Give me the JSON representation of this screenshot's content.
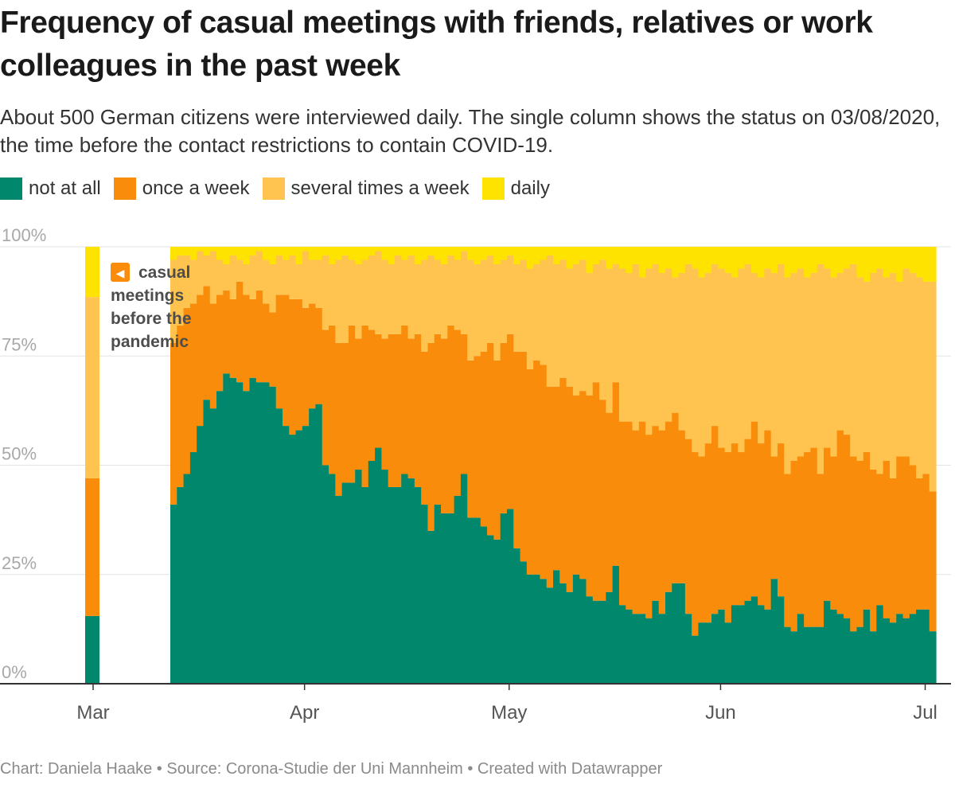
{
  "title": "Frequency of casual meetings with friends, relatives or work colleagues in the past week",
  "subtitle": "About 500 German citizens were interviewed daily. The single column shows the status on 03/08/2020, the time before the contact restrictions to contain COVID-19.",
  "footer": {
    "credit": "Chart: Daniela Haake",
    "source": "Source: Corona-Studie der Uni Mannheim",
    "tool": "Created with Datawrapper",
    "separator": "•"
  },
  "colors": {
    "not_at_all": "#00876c",
    "once_a_week": "#f98c0a",
    "several_times": "#fec44f",
    "daily": "#ffe300",
    "grid": "#e3e3e3",
    "axis": "#333333"
  },
  "legend": [
    {
      "key": "not_at_all",
      "label": "not at all"
    },
    {
      "key": "once_a_week",
      "label": "once a week"
    },
    {
      "key": "several_times",
      "label": "several times a week"
    },
    {
      "key": "daily",
      "label": "daily"
    }
  ],
  "chart_data": {
    "type": "area",
    "stacked": true,
    "normalized": true,
    "title": "Frequency of casual meetings with friends, relatives or work colleagues in the past week",
    "xlabel": "",
    "ylabel": "",
    "ylim": [
      0,
      100
    ],
    "y_ticks": [
      "0%",
      "25%",
      "50%",
      "75%",
      "100%"
    ],
    "x_ticks": [
      {
        "date": "2020-03-01",
        "label": "Mar"
      },
      {
        "date": "2020-04-01",
        "label": "Apr"
      },
      {
        "date": "2020-05-01",
        "label": "May"
      },
      {
        "date": "2020-06-01",
        "label": "Jun"
      },
      {
        "date": "2020-07-01",
        "label": "Jul"
      }
    ],
    "grid": true,
    "legend_position": "top-left",
    "baseline": {
      "date": "2020-03-08",
      "not_at_all": 15.5,
      "once_a_week_cum": 47,
      "several_cum": 88.5
    },
    "series_start": "2020-03-20",
    "series_order": [
      "not at all",
      "once a week",
      "several times a week",
      "daily"
    ],
    "series_cumulative": {
      "not_at_all": [
        41,
        45,
        48,
        53,
        59,
        65,
        63,
        67,
        71,
        70,
        69,
        67,
        70,
        69,
        69,
        68,
        63,
        59,
        57,
        58,
        59,
        63,
        64,
        50,
        48,
        43,
        46,
        46,
        49,
        45,
        51,
        54,
        49,
        45,
        45,
        48,
        47,
        45,
        41,
        35,
        41,
        39,
        39,
        43,
        48,
        38,
        38,
        36,
        34,
        33,
        39,
        40,
        31,
        28,
        25,
        25,
        24,
        22,
        26,
        23,
        21,
        25,
        24,
        20,
        19,
        19,
        21,
        27,
        18,
        17,
        16,
        16,
        15,
        19,
        16,
        21,
        23,
        23,
        16,
        11,
        14,
        14,
        16,
        17,
        14,
        18,
        18,
        19,
        20,
        18,
        17,
        24,
        20,
        13,
        12,
        16,
        13,
        13,
        13,
        19,
        17,
        16,
        15,
        12,
        13,
        17,
        12,
        18,
        15,
        14,
        16,
        15,
        16,
        17,
        17,
        12
      ],
      "once_a_week": [
        78,
        82,
        86,
        87,
        89,
        91,
        87,
        89,
        90,
        88,
        92,
        89,
        88,
        90,
        87,
        85,
        89,
        89,
        88,
        88,
        86,
        87,
        86,
        81,
        82,
        78,
        78,
        82,
        79,
        82,
        81,
        80,
        79,
        80,
        80,
        82,
        79,
        80,
        76,
        78,
        80,
        79,
        82,
        81,
        80,
        74,
        75,
        76,
        78,
        74,
        78,
        80,
        76,
        76,
        72,
        74,
        73,
        68,
        68,
        70,
        68,
        66,
        67,
        66,
        69,
        65,
        62,
        69,
        60,
        60,
        58,
        60,
        57,
        59,
        58,
        60,
        62,
        58,
        56,
        53,
        52,
        55,
        59,
        54,
        53,
        55,
        53,
        56,
        60,
        55,
        58,
        52,
        55,
        48,
        51,
        52,
        53,
        54,
        48,
        54,
        52,
        58,
        57,
        52,
        51,
        53,
        49,
        48,
        51,
        47,
        52,
        52,
        50,
        47,
        48,
        44
      ],
      "several_times": [
        97,
        98,
        98,
        97,
        99,
        98,
        99,
        97,
        96,
        98,
        97,
        96,
        98,
        99,
        97,
        96,
        98,
        97,
        98,
        96,
        99,
        97,
        97,
        98,
        96,
        97,
        98,
        97,
        96,
        97,
        98,
        99,
        97,
        96,
        98,
        97,
        98,
        96,
        97,
        98,
        97,
        96,
        98,
        97,
        99,
        97,
        96,
        97,
        98,
        96,
        97,
        98,
        96,
        97,
        95,
        96,
        97,
        98,
        96,
        97,
        95,
        96,
        97,
        94,
        96,
        97,
        95,
        96,
        95,
        94,
        96,
        93,
        95,
        96,
        94,
        95,
        93,
        94,
        96,
        95,
        93,
        94,
        96,
        95,
        94,
        93,
        95,
        96,
        94,
        93,
        95,
        94,
        96,
        93,
        94,
        95,
        93,
        94,
        96,
        95,
        93,
        94,
        95,
        96,
        93,
        92,
        94,
        95,
        93,
        94,
        92,
        95,
        94,
        93,
        92,
        92
      ],
      "daily": 100
    }
  },
  "annotation": {
    "arrow_glyph": "◀",
    "lines": [
      "casual",
      "meetings",
      "before the",
      "pandemic"
    ]
  }
}
